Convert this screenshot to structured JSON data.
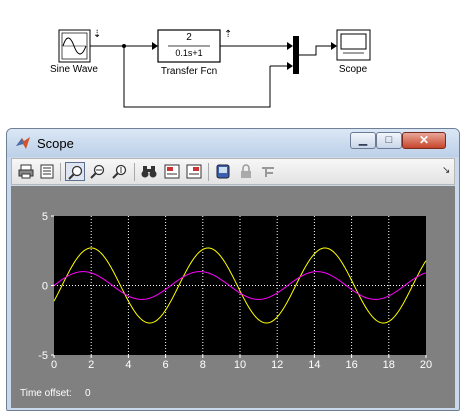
{
  "diagram": {
    "blocks": [
      {
        "name": "sine-wave-block",
        "label": "Sine Wave"
      },
      {
        "name": "transfer-fcn-block",
        "label": "Transfer Fcn",
        "numerator": "2",
        "denominator": "0.1s+1"
      },
      {
        "name": "scope-block",
        "label": "Scope"
      }
    ]
  },
  "scope": {
    "title": "Scope",
    "toolbar": [
      "print-icon",
      "parameters-icon",
      "zoom-icon",
      "zoom-x-icon",
      "zoom-y-icon",
      "binoculars-icon",
      "save-axes-icon",
      "restore-axes-icon",
      "floating-scope-icon",
      "lock-icon",
      "signal-selection-icon"
    ],
    "time_offset_label": "Time offset:",
    "time_offset_value": "0"
  },
  "chart_data": {
    "type": "line",
    "title": "",
    "xlabel": "",
    "ylabel": "",
    "xlim": [
      0,
      20
    ],
    "ylim": [
      -5,
      5
    ],
    "xticks": [
      0,
      2,
      4,
      6,
      8,
      10,
      12,
      14,
      16,
      18,
      20
    ],
    "yticks": [
      -5,
      0,
      5
    ],
    "grid": true,
    "colors": {
      "background": "#000000",
      "grid": "#ffffff",
      "axis_text": "#ffffff"
    },
    "series": [
      {
        "color": "#ffff00",
        "function": "amplitude*sin(t - phase)",
        "amplitude": 2.7,
        "phase": 0.43,
        "x": [
          0,
          20
        ]
      },
      {
        "color": "#ff00ff",
        "function": "amplitude*sin(t)",
        "amplitude": 1.0,
        "x": [
          0,
          20
        ]
      }
    ]
  }
}
